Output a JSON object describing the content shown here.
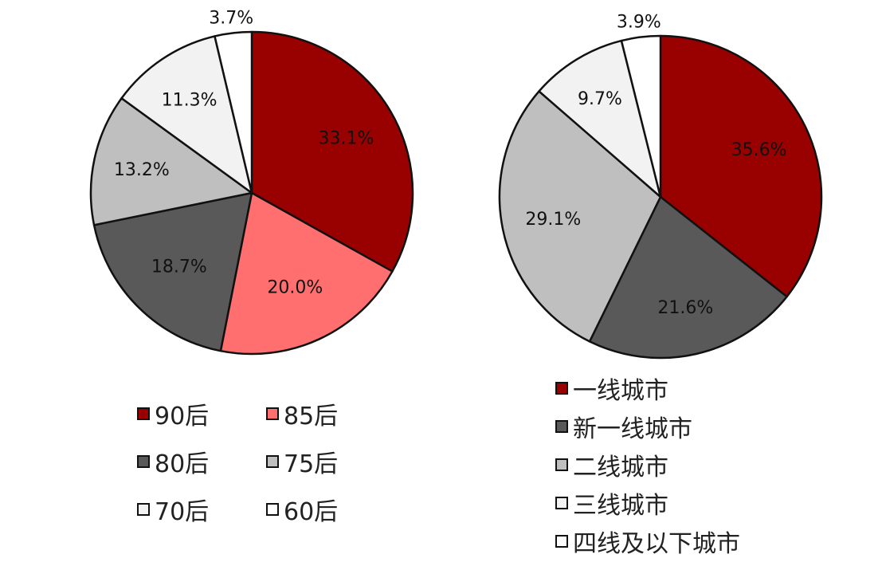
{
  "chart_data": [
    {
      "type": "pie",
      "slices": [
        {
          "label": "90后",
          "value": 33.1,
          "display": "33.1%",
          "color": "#990000"
        },
        {
          "label": "85后",
          "value": 20.0,
          "display": "20.0%",
          "color": "#FF6F6F"
        },
        {
          "label": "80后",
          "value": 18.7,
          "display": "18.7%",
          "color": "#595959"
        },
        {
          "label": "75后",
          "value": 13.2,
          "display": "13.2%",
          "color": "#BFBFBF"
        },
        {
          "label": "70后",
          "value": 11.3,
          "display": "11.3%",
          "color": "#F2F2F2"
        },
        {
          "label": "60后",
          "value": 3.7,
          "display": "3.7%",
          "color": "#FFFFFF"
        }
      ],
      "start": "12 o'clock",
      "direction": "clockwise",
      "legend_position": "bottom"
    },
    {
      "type": "pie",
      "slices": [
        {
          "label": "一线城市",
          "value": 35.6,
          "display": "35.6%",
          "color": "#990000"
        },
        {
          "label": "新一线城市",
          "value": 21.6,
          "display": "21.6%",
          "color": "#595959"
        },
        {
          "label": "二线城市",
          "value": 29.1,
          "display": "29.1%",
          "color": "#BFBFBF"
        },
        {
          "label": "三线城市",
          "value": 9.7,
          "display": "9.7%",
          "color": "#F2F2F2"
        },
        {
          "label": "四线及以下城市",
          "value": 3.9,
          "display": "3.9%",
          "color": "#FFFFFF"
        }
      ],
      "start": "12 o'clock",
      "direction": "clockwise",
      "legend_position": "bottom"
    }
  ]
}
